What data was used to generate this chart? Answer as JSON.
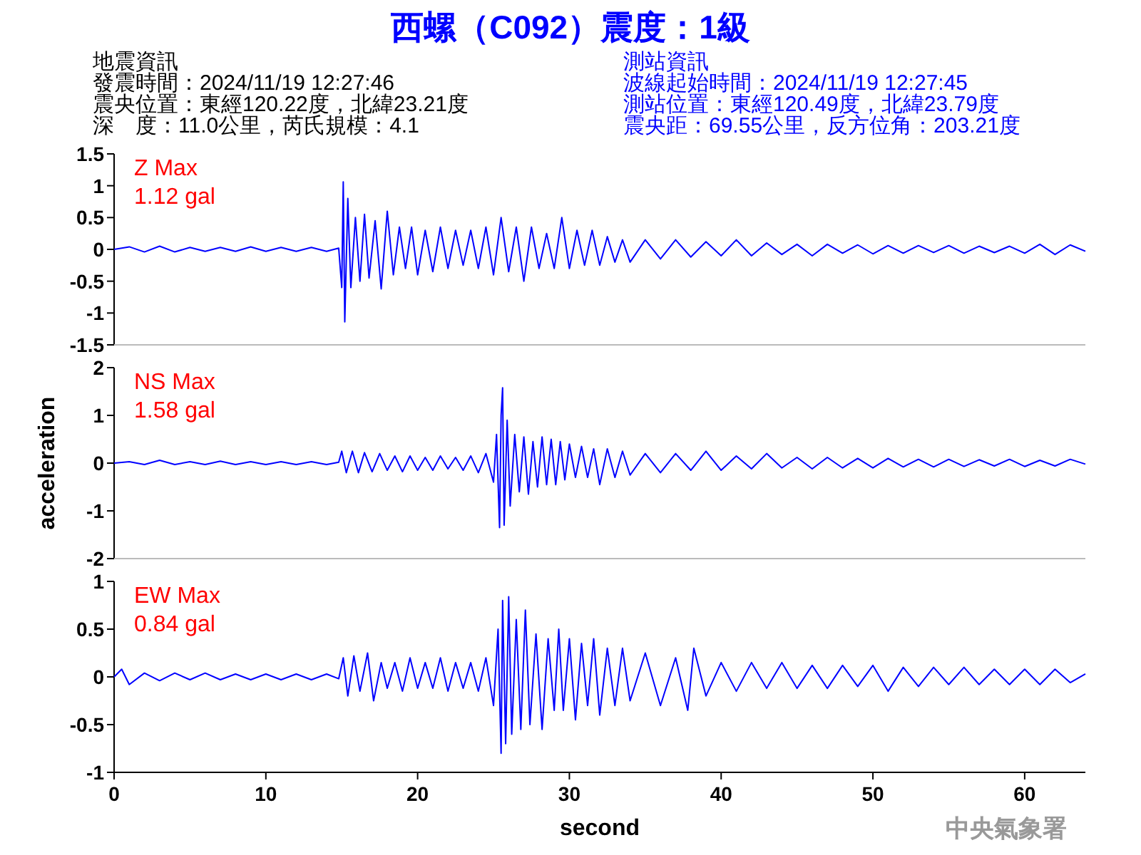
{
  "chart_data": [
    {
      "type": "line",
      "title": "西螺（C092）震度：1級",
      "annotations": [
        "Z Max",
        "1.12 gal",
        "地震資訊",
        "發震時間：2024/11/19 12:27:46",
        "震央位置：東經120.22度，北緯23.21度",
        "深　度：11.0公里，芮氏規模：4.1",
        "測站資訊",
        "波線起始時間：2024/11/19 12:27:45",
        "測站位置：東經120.49度，北緯23.79度",
        "震央距：69.55公里，反方位角：203.21度"
      ],
      "xlim": [
        0,
        64
      ],
      "ylim": [
        -1.5,
        1.5
      ],
      "yticks": [
        -1.5,
        -1,
        -0.5,
        0,
        0.5,
        1,
        1.5
      ],
      "tick_labels": "y",
      "series": [
        {
          "color": "#0000ff",
          "x": [
            0,
            1,
            2,
            3,
            4,
            5,
            6,
            7,
            8,
            9,
            10,
            11,
            12,
            13,
            14,
            14.8,
            15.0,
            15.1,
            15.2,
            15.4,
            15.6,
            15.9,
            16.2,
            16.5,
            16.8,
            17.2,
            17.6,
            18.0,
            18.4,
            18.8,
            19.2,
            19.6,
            20.0,
            20.5,
            21.0,
            21.5,
            22.0,
            22.5,
            23.0,
            23.5,
            24.0,
            24.5,
            25.0,
            25.5,
            26.0,
            26.5,
            27.0,
            27.5,
            28.0,
            28.5,
            29.0,
            29.5,
            30.0,
            30.5,
            31.0,
            31.5,
            32.0,
            32.5,
            33.0,
            33.5,
            34,
            35,
            36,
            37,
            38,
            39,
            40,
            41,
            42,
            43,
            44,
            45,
            46,
            47,
            48,
            49,
            50,
            51,
            52,
            53,
            54,
            55,
            56,
            57,
            58,
            59,
            60,
            61,
            62,
            63,
            64
          ],
          "values": [
            0,
            0.04,
            -0.04,
            0.05,
            -0.04,
            0.03,
            -0.03,
            0.03,
            -0.03,
            0.04,
            -0.03,
            0.03,
            -0.03,
            0.03,
            -0.03,
            0.02,
            -0.6,
            1.06,
            -1.14,
            0.8,
            -0.6,
            0.5,
            -0.5,
            0.55,
            -0.45,
            0.45,
            -0.62,
            0.6,
            -0.4,
            0.35,
            -0.3,
            0.35,
            -0.4,
            0.3,
            -0.35,
            0.35,
            -0.3,
            0.3,
            -0.25,
            0.3,
            -0.3,
            0.35,
            -0.4,
            0.5,
            -0.35,
            0.35,
            -0.5,
            0.35,
            -0.3,
            0.25,
            -0.3,
            0.5,
            -0.3,
            0.3,
            -0.25,
            0.3,
            -0.25,
            0.2,
            -0.2,
            0.15,
            -0.2,
            0.15,
            -0.15,
            0.15,
            -0.12,
            0.12,
            -0.1,
            0.15,
            -0.1,
            0.1,
            -0.08,
            0.08,
            -0.1,
            0.08,
            -0.06,
            0.07,
            -0.07,
            0.06,
            -0.06,
            0.06,
            -0.05,
            0.06,
            -0.06,
            0.05,
            -0.05,
            0.05,
            -0.06,
            0.08,
            -0.08,
            0.07,
            -0.03
          ]
        }
      ]
    },
    {
      "type": "line",
      "ylabel": "acceleration",
      "annotations": [
        "NS Max",
        "1.58 gal"
      ],
      "xlim": [
        0,
        64
      ],
      "ylim": [
        -2,
        2
      ],
      "yticks": [
        -2,
        -1,
        0,
        1,
        2
      ],
      "tick_labels": "y",
      "series": [
        {
          "color": "#0000ff",
          "x": [
            0,
            1,
            2,
            3,
            4,
            5,
            6,
            7,
            8,
            9,
            10,
            11,
            12,
            13,
            14,
            14.8,
            15.0,
            15.3,
            15.7,
            16.1,
            16.5,
            17,
            17.5,
            18,
            18.5,
            19,
            19.5,
            20,
            20.5,
            21,
            21.5,
            22,
            22.5,
            23,
            23.5,
            24,
            24.5,
            25.0,
            25.2,
            25.4,
            25.5,
            25.6,
            25.7,
            25.9,
            26.1,
            26.4,
            26.7,
            27,
            27.3,
            27.6,
            27.9,
            28.2,
            28.5,
            28.8,
            29.1,
            29.4,
            29.7,
            30,
            30.4,
            30.8,
            31.2,
            31.6,
            32,
            32.5,
            33,
            33.5,
            34,
            35,
            36,
            37,
            38,
            39,
            40,
            41,
            42,
            43,
            44,
            45,
            46,
            47,
            48,
            49,
            50,
            51,
            52,
            53,
            54,
            55,
            56,
            57,
            58,
            59,
            60,
            61,
            62,
            63,
            64
          ],
          "values": [
            0,
            0.03,
            -0.03,
            0.06,
            -0.03,
            0.03,
            -0.03,
            0.04,
            -0.03,
            0.03,
            -0.03,
            0.03,
            -0.03,
            0.03,
            -0.03,
            0.02,
            0.25,
            -0.2,
            0.25,
            -0.2,
            0.22,
            -0.18,
            0.2,
            -0.15,
            0.15,
            -0.18,
            0.15,
            -0.15,
            0.12,
            -0.15,
            0.15,
            -0.12,
            0.12,
            -0.15,
            0.15,
            -0.2,
            0.2,
            -0.4,
            0.6,
            -1.35,
            1.0,
            1.58,
            -1.3,
            0.9,
            -0.9,
            0.6,
            -0.6,
            0.55,
            -0.65,
            0.45,
            -0.5,
            0.55,
            -0.45,
            0.5,
            -0.45,
            0.45,
            -0.35,
            0.4,
            -0.3,
            0.35,
            -0.3,
            0.3,
            -0.45,
            0.3,
            -0.3,
            0.25,
            -0.25,
            0.2,
            -0.2,
            0.2,
            -0.15,
            0.25,
            -0.15,
            0.15,
            -0.12,
            0.2,
            -0.1,
            0.12,
            -0.12,
            0.12,
            -0.1,
            0.1,
            -0.1,
            0.1,
            -0.08,
            0.08,
            -0.08,
            0.08,
            -0.07,
            0.07,
            -0.06,
            0.08,
            -0.07,
            0.06,
            -0.06,
            0.08,
            -0.02
          ]
        }
      ]
    },
    {
      "type": "line",
      "xlabel": "second",
      "annotations": [
        "EW Max",
        "0.84 gal",
        "中央氣象署"
      ],
      "xlim": [
        0,
        64
      ],
      "xticks": [
        0,
        10,
        20,
        30,
        40,
        50,
        60
      ],
      "ylim": [
        -1,
        1
      ],
      "yticks": [
        -1,
        -0.5,
        0,
        0.5,
        1
      ],
      "series": [
        {
          "color": "#0000ff",
          "x": [
            0,
            0.5,
            1,
            2,
            3,
            4,
            5,
            6,
            7,
            8,
            9,
            10,
            11,
            12,
            13,
            14,
            14.8,
            15.1,
            15.4,
            15.8,
            16.2,
            16.7,
            17.1,
            17.6,
            18,
            18.5,
            19,
            19.5,
            20,
            20.5,
            21,
            21.5,
            22,
            22.5,
            23,
            23.5,
            24,
            24.5,
            25,
            25.3,
            25.5,
            25.6,
            25.8,
            26.0,
            26.2,
            26.5,
            26.8,
            27.1,
            27.4,
            27.8,
            28.2,
            28.6,
            29,
            29.3,
            29.6,
            30,
            30.4,
            30.8,
            31.2,
            31.6,
            32,
            32.5,
            33,
            33.5,
            34,
            35,
            36,
            37,
            37.8,
            38.2,
            39,
            40,
            41,
            42,
            43,
            44,
            45,
            46,
            47,
            48,
            49,
            50,
            51,
            52,
            53,
            54,
            55,
            56,
            57,
            58,
            59,
            60,
            61,
            62,
            63,
            64
          ],
          "values": [
            0,
            0.08,
            -0.08,
            0.04,
            -0.04,
            0.04,
            -0.03,
            0.04,
            -0.03,
            0.03,
            -0.03,
            0.03,
            -0.03,
            0.03,
            -0.03,
            0.03,
            -0.02,
            0.2,
            -0.2,
            0.22,
            -0.15,
            0.25,
            -0.25,
            0.15,
            -0.12,
            0.15,
            -0.15,
            0.2,
            -0.12,
            0.15,
            -0.12,
            0.2,
            -0.15,
            0.15,
            -0.12,
            0.15,
            -0.15,
            0.2,
            -0.3,
            0.5,
            -0.8,
            0.8,
            -0.7,
            0.84,
            -0.6,
            0.6,
            -0.55,
            0.7,
            -0.5,
            0.45,
            -0.55,
            0.4,
            -0.35,
            0.5,
            -0.35,
            0.4,
            -0.45,
            0.35,
            -0.3,
            0.4,
            -0.4,
            0.3,
            -0.3,
            0.3,
            -0.25,
            0.25,
            -0.3,
            0.2,
            -0.35,
            0.3,
            -0.2,
            0.15,
            -0.15,
            0.15,
            -0.12,
            0.15,
            -0.12,
            0.12,
            -0.12,
            0.12,
            -0.1,
            0.12,
            -0.15,
            0.1,
            -0.1,
            0.1,
            -0.08,
            0.1,
            -0.08,
            0.08,
            -0.08,
            0.08,
            -0.08,
            0.08,
            -0.06,
            0.03
          ]
        }
      ]
    }
  ]
}
